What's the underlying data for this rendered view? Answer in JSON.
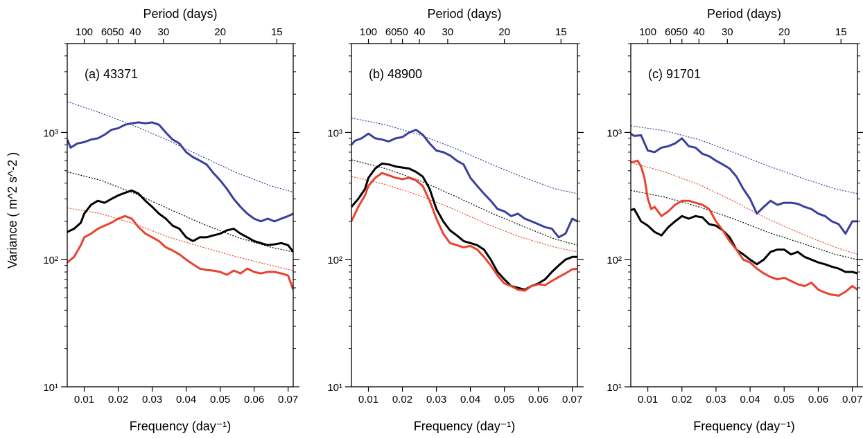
{
  "figure": {
    "ylabel": "Variance ( m^2 s^-2 )",
    "top_axis_title": "Period (days)",
    "bottom_axis_title": "Frequency (day⁻¹)"
  },
  "colors": {
    "blue": "#3a3f9e",
    "black": "#000000",
    "red": "#e8432e"
  },
  "chart_data": [
    {
      "type": "line",
      "title": "(a) 43371",
      "xlabel": "Frequency (day⁻¹)",
      "ylabel": "Variance ( m^2 s^-2 )",
      "top_xlabel": "Period (days)",
      "xlim": [
        0.005,
        0.0715
      ],
      "ylim": [
        10,
        5000
      ],
      "yscale": "log",
      "xticks": [
        0.01,
        0.02,
        0.03,
        0.04,
        0.05,
        0.06,
        0.07
      ],
      "top_ticks": [
        100,
        60,
        50,
        40,
        30,
        20,
        15
      ],
      "yticks": [
        "10¹",
        "10²",
        "10³"
      ],
      "series": [
        {
          "color": "blue",
          "style": "solid",
          "x": [
            0.005,
            0.006,
            0.008,
            0.01,
            0.012,
            0.014,
            0.016,
            0.018,
            0.02,
            0.022,
            0.024,
            0.026,
            0.028,
            0.03,
            0.032,
            0.034,
            0.036,
            0.038,
            0.04,
            0.042,
            0.044,
            0.046,
            0.048,
            0.05,
            0.052,
            0.054,
            0.056,
            0.058,
            0.06,
            0.062,
            0.064,
            0.066,
            0.068,
            0.07,
            0.0715
          ],
          "y": [
            880,
            760,
            820,
            840,
            880,
            900,
            960,
            1050,
            1080,
            1150,
            1180,
            1200,
            1180,
            1200,
            1150,
            1000,
            880,
            820,
            700,
            640,
            600,
            560,
            480,
            420,
            360,
            300,
            260,
            230,
            210,
            200,
            210,
            200,
            210,
            220,
            230
          ]
        },
        {
          "color": "black",
          "style": "solid",
          "x": [
            0.005,
            0.007,
            0.009,
            0.01,
            0.012,
            0.014,
            0.016,
            0.018,
            0.02,
            0.022,
            0.024,
            0.026,
            0.028,
            0.03,
            0.032,
            0.034,
            0.036,
            0.038,
            0.04,
            0.042,
            0.044,
            0.046,
            0.048,
            0.05,
            0.052,
            0.054,
            0.056,
            0.058,
            0.06,
            0.062,
            0.064,
            0.066,
            0.068,
            0.07,
            0.0715
          ],
          "y": [
            165,
            175,
            195,
            230,
            270,
            290,
            280,
            300,
            320,
            335,
            350,
            330,
            290,
            260,
            230,
            210,
            185,
            175,
            150,
            140,
            150,
            150,
            155,
            160,
            170,
            175,
            160,
            150,
            140,
            135,
            130,
            132,
            135,
            130,
            115
          ]
        },
        {
          "color": "red",
          "style": "solid",
          "x": [
            0.005,
            0.007,
            0.009,
            0.01,
            0.012,
            0.014,
            0.016,
            0.018,
            0.02,
            0.022,
            0.024,
            0.026,
            0.028,
            0.03,
            0.032,
            0.034,
            0.036,
            0.038,
            0.04,
            0.042,
            0.044,
            0.046,
            0.048,
            0.05,
            0.052,
            0.054,
            0.056,
            0.058,
            0.06,
            0.062,
            0.064,
            0.066,
            0.068,
            0.07,
            0.0715
          ],
          "y": [
            95,
            105,
            130,
            150,
            160,
            175,
            185,
            195,
            210,
            220,
            210,
            180,
            160,
            150,
            140,
            125,
            118,
            110,
            100,
            92,
            85,
            83,
            82,
            80,
            76,
            82,
            78,
            85,
            80,
            78,
            80,
            80,
            78,
            75,
            58
          ]
        },
        {
          "color": "blue",
          "style": "dotted",
          "x": [
            0.005,
            0.015,
            0.025,
            0.035,
            0.045,
            0.055,
            0.065,
            0.0715
          ],
          "y": [
            1750,
            1420,
            1120,
            860,
            640,
            480,
            380,
            340
          ]
        },
        {
          "color": "black",
          "style": "dotted",
          "x": [
            0.005,
            0.015,
            0.025,
            0.035,
            0.045,
            0.055,
            0.065,
            0.0715
          ],
          "y": [
            490,
            420,
            330,
            250,
            190,
            150,
            125,
            115
          ]
        },
        {
          "color": "red",
          "style": "dotted",
          "x": [
            0.005,
            0.015,
            0.025,
            0.035,
            0.045,
            0.055,
            0.065,
            0.0715
          ],
          "y": [
            255,
            230,
            190,
            150,
            125,
            105,
            90,
            82
          ]
        }
      ]
    },
    {
      "type": "line",
      "title": "(b) 48900",
      "xlabel": "Frequency (day⁻¹)",
      "ylabel": "",
      "top_xlabel": "Period (days)",
      "xlim": [
        0.005,
        0.0715
      ],
      "ylim": [
        10,
        5000
      ],
      "yscale": "log",
      "xticks": [
        0.01,
        0.02,
        0.03,
        0.04,
        0.05,
        0.06,
        0.07
      ],
      "top_ticks": [
        100,
        60,
        50,
        40,
        30,
        20,
        15
      ],
      "yticks": [
        "10¹",
        "10²",
        "10³"
      ],
      "series": [
        {
          "color": "blue",
          "style": "solid",
          "x": [
            0.005,
            0.006,
            0.008,
            0.01,
            0.012,
            0.014,
            0.016,
            0.018,
            0.02,
            0.022,
            0.024,
            0.026,
            0.028,
            0.03,
            0.032,
            0.034,
            0.036,
            0.038,
            0.04,
            0.042,
            0.044,
            0.046,
            0.048,
            0.05,
            0.052,
            0.054,
            0.056,
            0.058,
            0.06,
            0.062,
            0.064,
            0.066,
            0.068,
            0.07,
            0.0715
          ],
          "y": [
            800,
            860,
            900,
            980,
            900,
            880,
            850,
            900,
            920,
            1000,
            1050,
            960,
            820,
            720,
            700,
            660,
            600,
            560,
            440,
            380,
            330,
            290,
            250,
            240,
            220,
            230,
            210,
            200,
            190,
            180,
            175,
            150,
            160,
            210,
            200
          ]
        },
        {
          "color": "black",
          "style": "solid",
          "x": [
            0.005,
            0.007,
            0.009,
            0.01,
            0.012,
            0.014,
            0.016,
            0.018,
            0.02,
            0.022,
            0.024,
            0.026,
            0.028,
            0.03,
            0.032,
            0.034,
            0.036,
            0.038,
            0.04,
            0.042,
            0.044,
            0.046,
            0.048,
            0.05,
            0.052,
            0.054,
            0.056,
            0.058,
            0.06,
            0.062,
            0.064,
            0.066,
            0.068,
            0.07,
            0.0715
          ],
          "y": [
            260,
            300,
            360,
            440,
            520,
            570,
            560,
            540,
            530,
            520,
            490,
            450,
            360,
            250,
            200,
            170,
            155,
            140,
            135,
            130,
            120,
            100,
            80,
            70,
            62,
            60,
            58,
            62,
            65,
            70,
            80,
            90,
            100,
            105,
            105
          ]
        },
        {
          "color": "red",
          "style": "solid",
          "x": [
            0.005,
            0.007,
            0.009,
            0.01,
            0.012,
            0.014,
            0.016,
            0.018,
            0.02,
            0.022,
            0.024,
            0.026,
            0.028,
            0.03,
            0.032,
            0.034,
            0.036,
            0.038,
            0.04,
            0.042,
            0.044,
            0.046,
            0.048,
            0.05,
            0.052,
            0.054,
            0.056,
            0.058,
            0.06,
            0.062,
            0.064,
            0.066,
            0.068,
            0.07,
            0.0715
          ],
          "y": [
            200,
            260,
            320,
            380,
            440,
            480,
            460,
            440,
            430,
            440,
            420,
            380,
            290,
            210,
            160,
            135,
            130,
            125,
            128,
            120,
            105,
            90,
            75,
            65,
            62,
            58,
            57,
            62,
            64,
            63,
            68,
            73,
            78,
            84,
            85
          ]
        },
        {
          "color": "blue",
          "style": "dotted",
          "x": [
            0.005,
            0.015,
            0.025,
            0.035,
            0.045,
            0.055,
            0.065,
            0.0715
          ],
          "y": [
            1300,
            1150,
            960,
            760,
            580,
            450,
            360,
            330
          ]
        },
        {
          "color": "black",
          "style": "dotted",
          "x": [
            0.005,
            0.015,
            0.025,
            0.035,
            0.045,
            0.055,
            0.065,
            0.0715
          ],
          "y": [
            610,
            520,
            420,
            320,
            240,
            185,
            145,
            130
          ]
        },
        {
          "color": "red",
          "style": "dotted",
          "x": [
            0.005,
            0.015,
            0.025,
            0.035,
            0.045,
            0.055,
            0.065,
            0.0715
          ],
          "y": [
            450,
            390,
            320,
            250,
            190,
            150,
            125,
            115
          ]
        }
      ]
    },
    {
      "type": "line",
      "title": "(c) 91701",
      "xlabel": "Frequency (day⁻¹)",
      "ylabel": "",
      "top_xlabel": "Period (days)",
      "xlim": [
        0.005,
        0.0715
      ],
      "ylim": [
        10,
        5000
      ],
      "yscale": "log",
      "xticks": [
        0.01,
        0.02,
        0.03,
        0.04,
        0.05,
        0.06,
        0.07
      ],
      "top_ticks": [
        100,
        60,
        50,
        40,
        30,
        20,
        15
      ],
      "yticks": [
        "10¹",
        "10²",
        "10³"
      ],
      "series": [
        {
          "color": "blue",
          "style": "solid",
          "x": [
            0.005,
            0.006,
            0.008,
            0.01,
            0.012,
            0.014,
            0.016,
            0.018,
            0.02,
            0.022,
            0.024,
            0.026,
            0.028,
            0.03,
            0.032,
            0.034,
            0.036,
            0.038,
            0.04,
            0.042,
            0.044,
            0.046,
            0.048,
            0.05,
            0.052,
            0.054,
            0.056,
            0.058,
            0.06,
            0.062,
            0.064,
            0.066,
            0.068,
            0.07,
            0.0715
          ],
          "y": [
            980,
            940,
            950,
            720,
            700,
            760,
            780,
            820,
            900,
            780,
            760,
            680,
            650,
            600,
            560,
            520,
            450,
            360,
            300,
            230,
            260,
            290,
            270,
            280,
            280,
            275,
            260,
            250,
            230,
            220,
            200,
            190,
            160,
            200,
            200
          ]
        },
        {
          "color": "black",
          "style": "solid",
          "x": [
            0.005,
            0.006,
            0.008,
            0.01,
            0.012,
            0.014,
            0.016,
            0.018,
            0.02,
            0.022,
            0.024,
            0.026,
            0.028,
            0.03,
            0.032,
            0.034,
            0.036,
            0.038,
            0.04,
            0.042,
            0.044,
            0.046,
            0.048,
            0.05,
            0.052,
            0.054,
            0.056,
            0.058,
            0.06,
            0.062,
            0.064,
            0.066,
            0.068,
            0.07,
            0.0715
          ],
          "y": [
            245,
            250,
            200,
            185,
            165,
            155,
            180,
            200,
            220,
            210,
            220,
            215,
            190,
            185,
            170,
            150,
            120,
            110,
            100,
            92,
            100,
            115,
            120,
            120,
            110,
            115,
            105,
            100,
            95,
            92,
            88,
            85,
            80,
            80,
            78
          ]
        },
        {
          "color": "red",
          "style": "solid",
          "x": [
            0.005,
            0.007,
            0.008,
            0.009,
            0.01,
            0.011,
            0.012,
            0.014,
            0.016,
            0.018,
            0.02,
            0.022,
            0.024,
            0.026,
            0.028,
            0.03,
            0.032,
            0.034,
            0.036,
            0.038,
            0.04,
            0.042,
            0.044,
            0.046,
            0.048,
            0.05,
            0.052,
            0.054,
            0.056,
            0.058,
            0.06,
            0.062,
            0.064,
            0.066,
            0.068,
            0.07,
            0.0715
          ],
          "y": [
            580,
            600,
            540,
            440,
            300,
            250,
            260,
            220,
            240,
            270,
            290,
            290,
            280,
            270,
            250,
            200,
            170,
            140,
            120,
            100,
            95,
            85,
            78,
            73,
            70,
            72,
            68,
            64,
            62,
            66,
            58,
            55,
            53,
            52,
            56,
            62,
            58
          ]
        },
        {
          "color": "blue",
          "style": "dotted",
          "x": [
            0.005,
            0.015,
            0.025,
            0.035,
            0.045,
            0.055,
            0.065,
            0.0715
          ],
          "y": [
            1130,
            1030,
            880,
            700,
            550,
            440,
            360,
            330
          ]
        },
        {
          "color": "black",
          "style": "dotted",
          "x": [
            0.005,
            0.015,
            0.025,
            0.035,
            0.045,
            0.055,
            0.065,
            0.0715
          ],
          "y": [
            350,
            310,
            260,
            210,
            165,
            135,
            110,
            100
          ]
        },
        {
          "color": "red",
          "style": "dotted",
          "x": [
            0.005,
            0.015,
            0.025,
            0.035,
            0.045,
            0.055,
            0.065,
            0.0715
          ],
          "y": [
            580,
            490,
            390,
            290,
            210,
            160,
            125,
            110
          ]
        }
      ]
    }
  ]
}
